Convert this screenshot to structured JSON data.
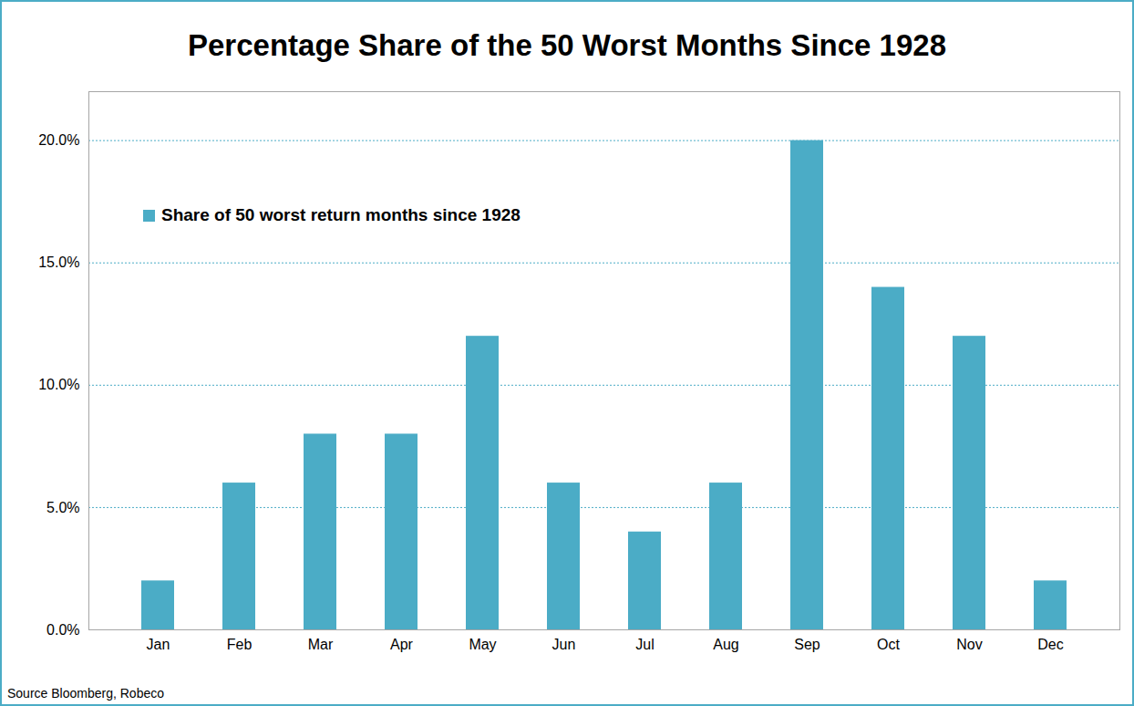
{
  "chart_data": {
    "type": "bar",
    "title": "Percentage Share of the 50 Worst Months Since 1928",
    "caption": "Source Bloomberg, Robeco",
    "categories": [
      "Jan",
      "Feb",
      "Mar",
      "Apr",
      "May",
      "Jun",
      "Jul",
      "Aug",
      "Sep",
      "Oct",
      "Nov",
      "Dec"
    ],
    "series": [
      {
        "name": "Share of 50 worst return months since 1928",
        "color": "#4bacc6",
        "values": [
          2,
          6,
          8,
          8,
          12,
          6,
          4,
          6,
          20,
          14,
          12,
          2
        ]
      }
    ],
    "ylim": [
      0,
      22
    ],
    "yticks": [
      {
        "value": 0,
        "label": "0.0%"
      },
      {
        "value": 5,
        "label": "5.0%"
      },
      {
        "value": 10,
        "label": "10.0%"
      },
      {
        "value": 15,
        "label": "15.0%"
      },
      {
        "value": 20,
        "label": "20.0%"
      }
    ],
    "grid": true,
    "legend": "upper left"
  }
}
